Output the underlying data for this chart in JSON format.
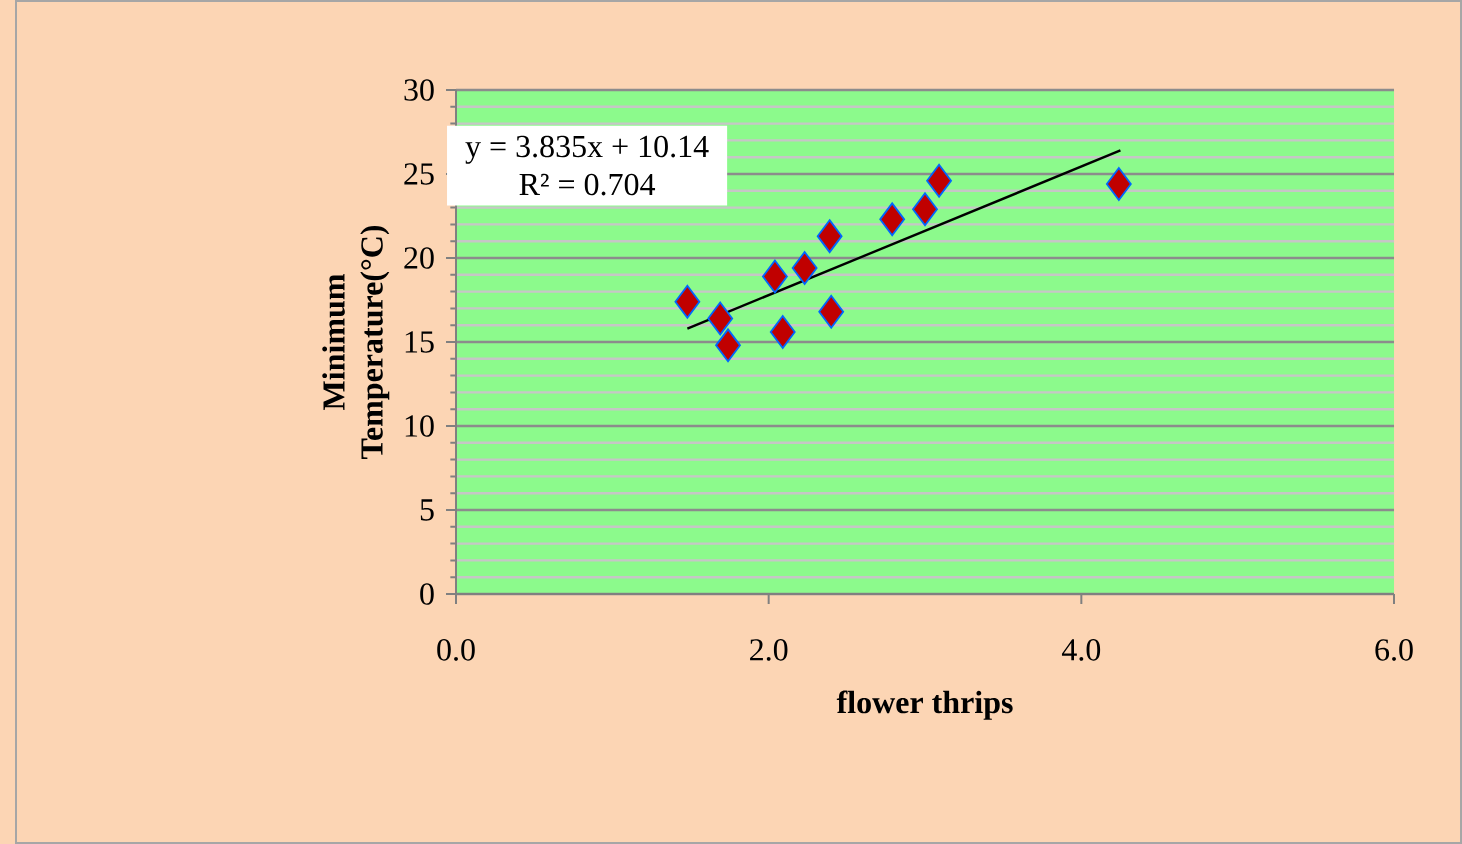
{
  "chart_data": {
    "type": "scatter",
    "xlabel": "flower thrips",
    "ylabel": "Minimum Temperature(°C)",
    "annotations": [
      "y = 3.835x + 10.14",
      "R² = 0.704"
    ],
    "xlim": [
      0,
      6
    ],
    "ylim": [
      0,
      30
    ],
    "xticks": [
      {
        "value": 0,
        "label": "0.0"
      },
      {
        "value": 2,
        "label": "2.0"
      },
      {
        "value": 4,
        "label": "4.0"
      },
      {
        "value": 6,
        "label": "6.0"
      }
    ],
    "yticks": [
      0,
      5,
      10,
      15,
      20,
      25,
      30
    ],
    "grid": "y",
    "series": [
      {
        "color": "#c00000",
        "marker": "diamond",
        "x": [
          1.48,
          1.69,
          1.74,
          2.04,
          2.09,
          2.23,
          2.39,
          2.4,
          2.79,
          3.0,
          3.09,
          4.24
        ],
        "values": [
          17.4,
          16.4,
          14.8,
          18.9,
          15.6,
          19.4,
          21.3,
          16.8,
          22.3,
          22.9,
          24.6,
          24.4
        ]
      },
      {
        "type": "line",
        "color": "#000000",
        "marker": "none",
        "line_style": "solid",
        "x": [
          1.48,
          4.25
        ],
        "values": [
          15.8,
          26.4
        ]
      }
    ]
  }
}
